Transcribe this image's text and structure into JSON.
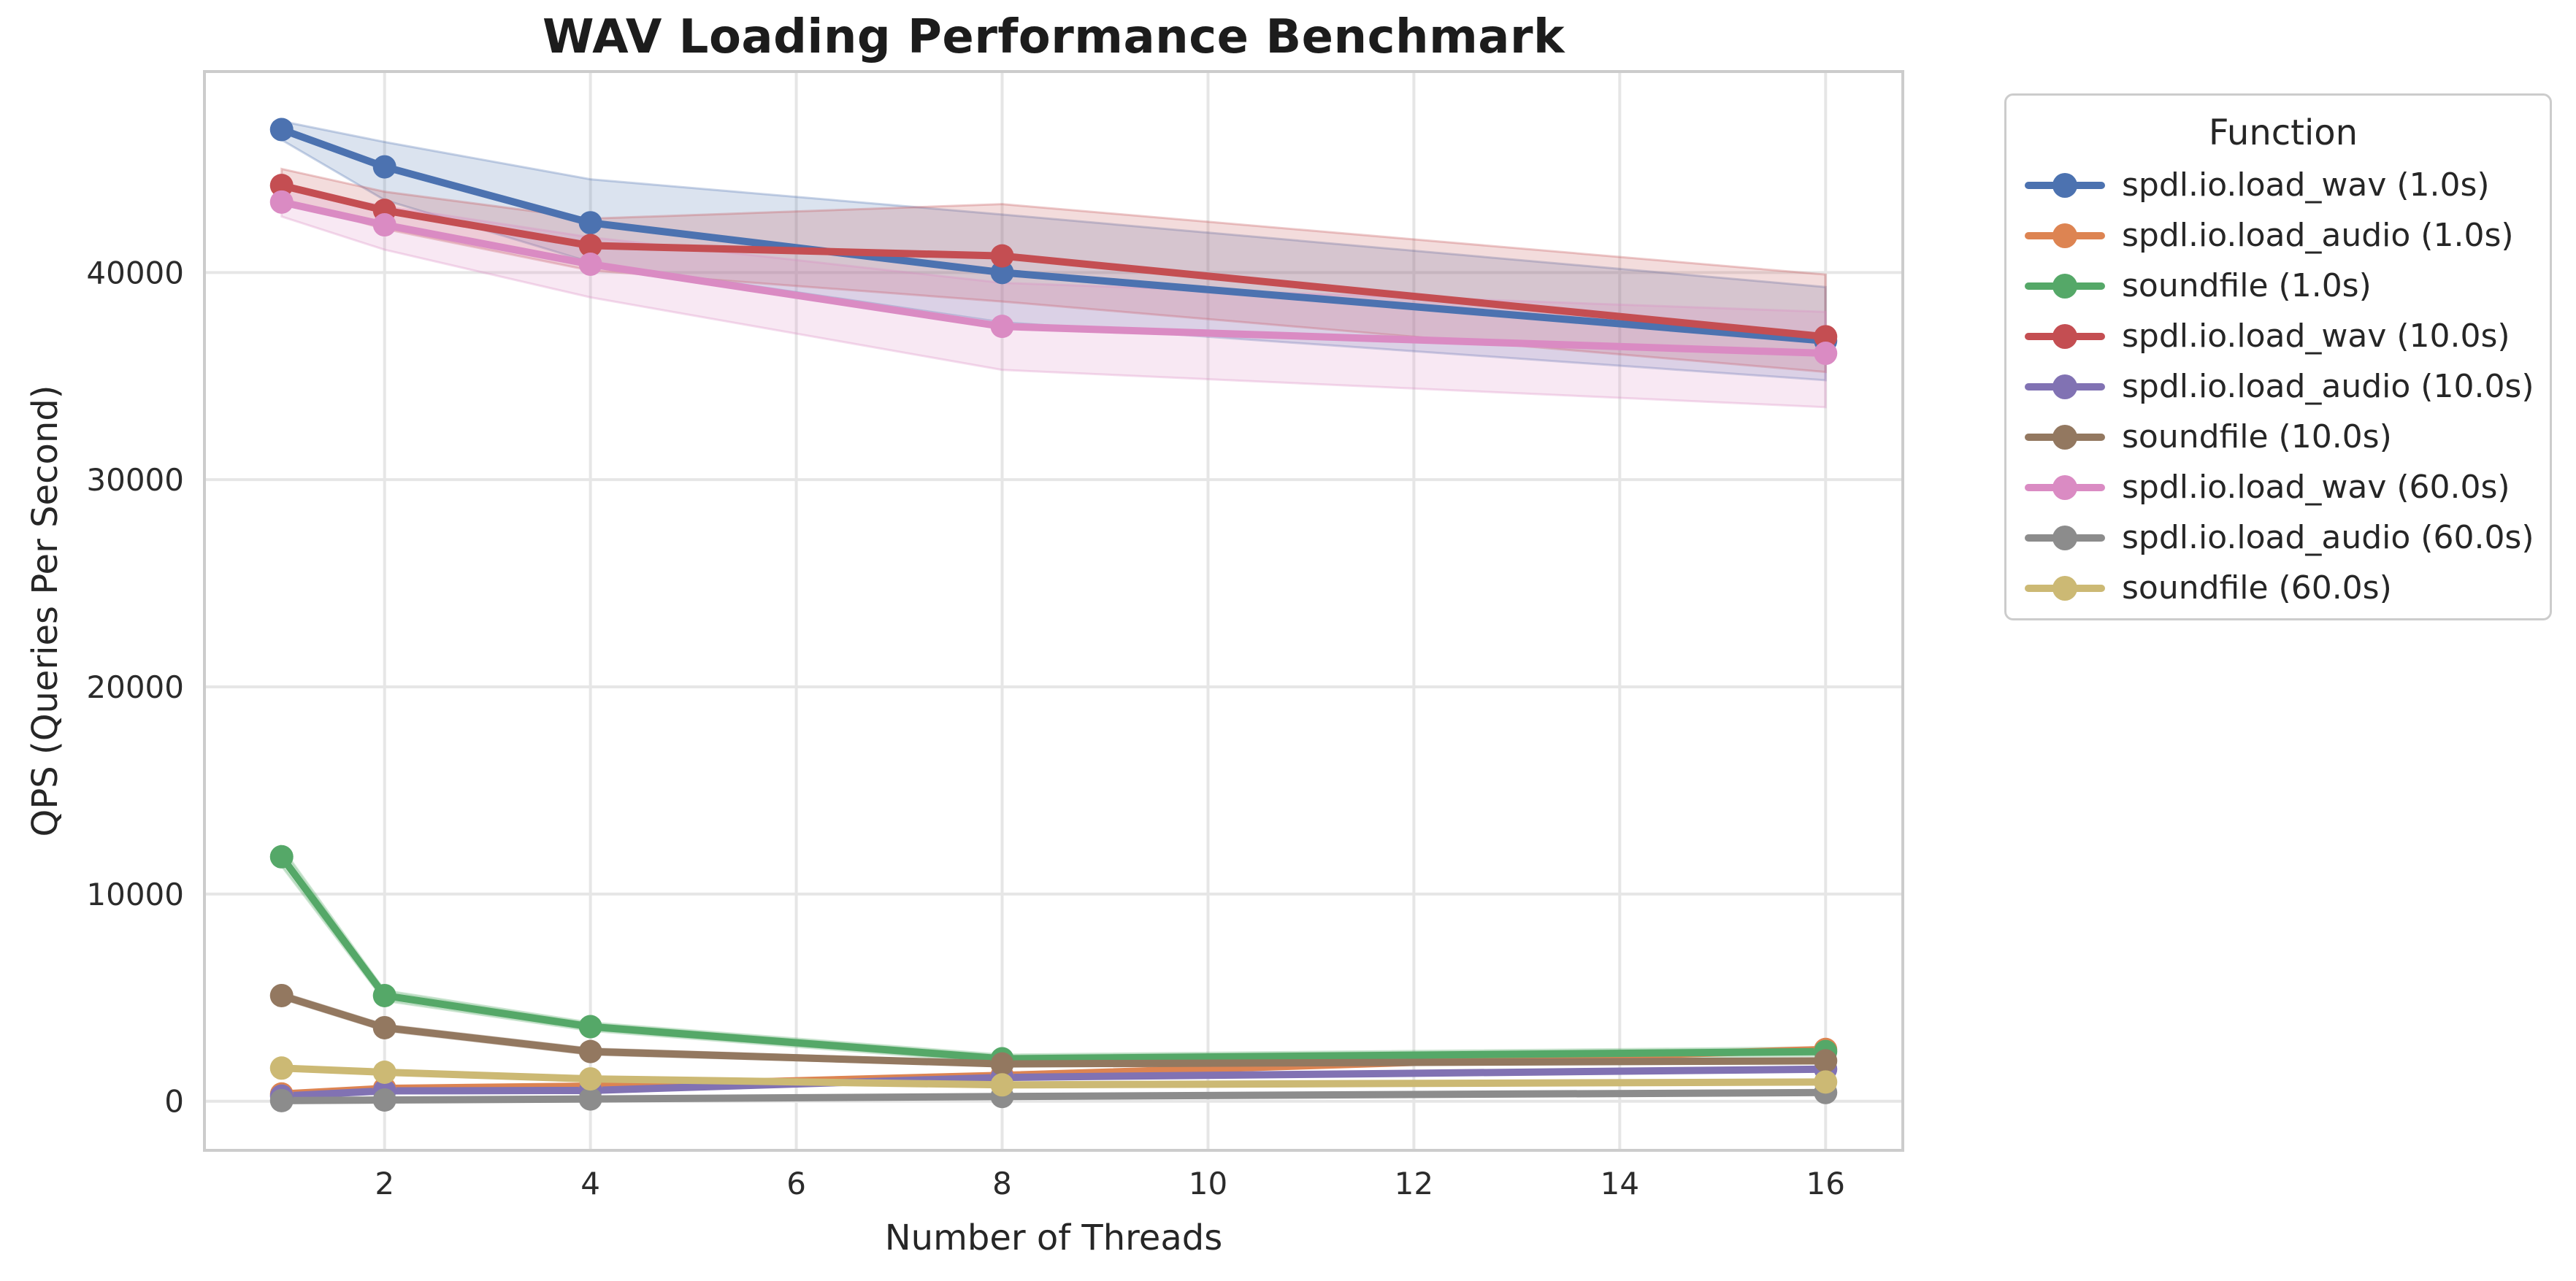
{
  "chart_data": {
    "type": "line",
    "title": "WAV Loading Performance Benchmark",
    "xlabel": "Number of Threads",
    "ylabel": "QPS (Queries Per Second)",
    "legend_title": "Function",
    "legend_position": "outside upper right",
    "grid": true,
    "x": [
      1,
      2,
      4,
      8,
      16
    ],
    "xticks": [
      2,
      4,
      6,
      8,
      10,
      12,
      14,
      16
    ],
    "yticks": [
      0,
      10000,
      20000,
      30000,
      40000
    ],
    "xlim": [
      0.25,
      16.75
    ],
    "ylim": [
      -2370,
      49700
    ],
    "series": [
      {
        "name": "spdl.io.load_wav (1.0s)",
        "color": "#4C72B0",
        "values": [
          46900,
          45100,
          42400,
          40000,
          36700
        ],
        "lo": [
          46400,
          43500,
          40500,
          37600,
          34800
        ],
        "hi": [
          47300,
          46300,
          44500,
          42800,
          39300
        ]
      },
      {
        "name": "spdl.io.load_audio (1.0s)",
        "color": "#DD8452",
        "values": [
          350,
          620,
          730,
          1250,
          2500
        ],
        "lo": [
          300,
          550,
          660,
          1170,
          2400
        ],
        "hi": [
          400,
          690,
          800,
          1330,
          2600
        ]
      },
      {
        "name": "soundfile (1.0s)",
        "color": "#55A868",
        "values": [
          11800,
          5100,
          3600,
          2050,
          2400
        ],
        "lo": [
          11350,
          4850,
          3400,
          1850,
          2200
        ],
        "hi": [
          12250,
          5350,
          3800,
          2250,
          2600
        ]
      },
      {
        "name": "spdl.io.load_wav (10.0s)",
        "color": "#C44E52",
        "values": [
          44200,
          43000,
          41300,
          40800,
          36900
        ],
        "lo": [
          43500,
          42100,
          40100,
          38600,
          35200
        ],
        "hi": [
          45000,
          43900,
          42600,
          43300,
          39900
        ]
      },
      {
        "name": "spdl.io.load_audio (10.0s)",
        "color": "#8172B3",
        "values": [
          250,
          500,
          520,
          1150,
          1550
        ],
        "lo": [
          210,
          450,
          470,
          1080,
          1460
        ],
        "hi": [
          290,
          550,
          570,
          1220,
          1640
        ]
      },
      {
        "name": "soundfile (10.0s)",
        "color": "#937860",
        "values": [
          5100,
          3550,
          2400,
          1800,
          1950
        ],
        "lo": [
          4950,
          3400,
          2250,
          1700,
          1850
        ],
        "hi": [
          5250,
          3700,
          2550,
          1900,
          2050
        ]
      },
      {
        "name": "spdl.io.load_wav (60.0s)",
        "color": "#DA8BC3",
        "values": [
          43400,
          42300,
          40400,
          37400,
          36100
        ],
        "lo": [
          42700,
          41100,
          38800,
          35300,
          33500
        ],
        "hi": [
          44100,
          43200,
          41700,
          39500,
          38100
        ]
      },
      {
        "name": "spdl.io.load_audio (60.0s)",
        "color": "#8C8C8C",
        "values": [
          30,
          60,
          110,
          230,
          420
        ],
        "lo": [
          15,
          40,
          80,
          190,
          370
        ],
        "hi": [
          45,
          80,
          140,
          270,
          470
        ]
      },
      {
        "name": "soundfile (60.0s)",
        "color": "#CCB974",
        "values": [
          1600,
          1400,
          1080,
          790,
          930
        ],
        "lo": [
          1500,
          1300,
          1000,
          720,
          860
        ],
        "hi": [
          1700,
          1500,
          1160,
          860,
          1000
        ]
      }
    ],
    "style": {
      "grid_color": "#e6e6e6",
      "spine_color": "#cccccc",
      "tick_label_color": "#2b2b2b",
      "background": "#ffffff"
    }
  }
}
